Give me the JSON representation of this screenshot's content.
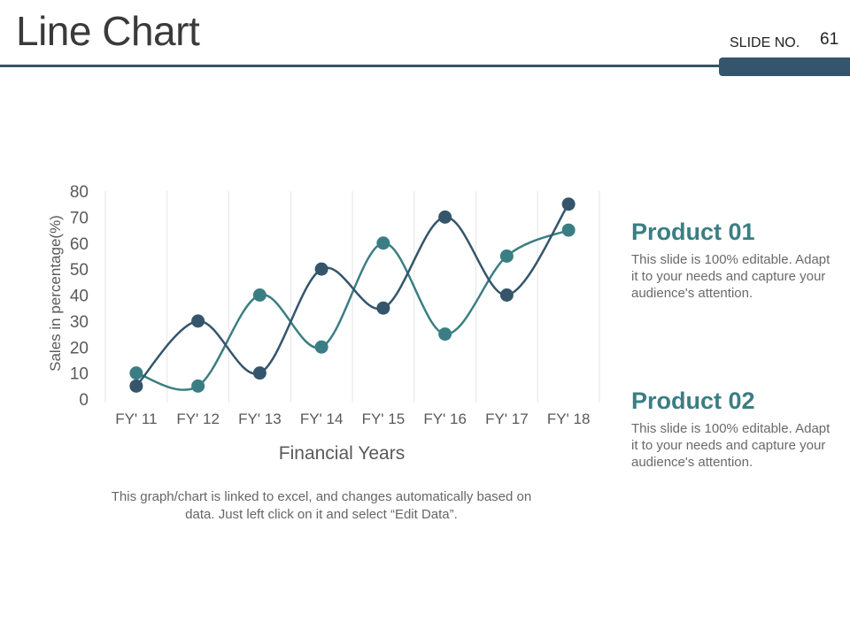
{
  "title": "Line Chart",
  "slide_no": {
    "label": "SLIDE NO.",
    "value": "61"
  },
  "note": "This graph/chart is linked to excel, and changes automatically based on data. Just left click on it and select “Edit Data”.",
  "products": [
    {
      "title": "Product 01",
      "description": "This slide is 100% editable. Adapt it to your needs and capture your audience's attention.",
      "color": "#3a7e83"
    },
    {
      "title": "Product 02",
      "description": "This slide is 100% editable. Adapt it to your needs and capture your audience's attention.",
      "color": "#3a7e83"
    }
  ],
  "chart_data": {
    "type": "line",
    "categories": [
      "FY' 11",
      "FY' 12",
      "FY' 13",
      "FY' 14",
      "FY' 15",
      "FY' 16",
      "FY' 17",
      "FY' 18"
    ],
    "series": [
      {
        "values": [
          5,
          30,
          10,
          50,
          35,
          70,
          40,
          75
        ],
        "color": "#34556b"
      },
      {
        "values": [
          10,
          5,
          40,
          20,
          60,
          25,
          55,
          65
        ],
        "color": "#3a7e83"
      }
    ],
    "xlabel": "Financial Years",
    "ylabel": "Sales in percentage(%)",
    "ylim": [
      0,
      80
    ],
    "yticks": [
      0,
      10,
      20,
      30,
      40,
      50,
      60,
      70,
      80
    ],
    "grid": "vertical",
    "smooth": true
  }
}
